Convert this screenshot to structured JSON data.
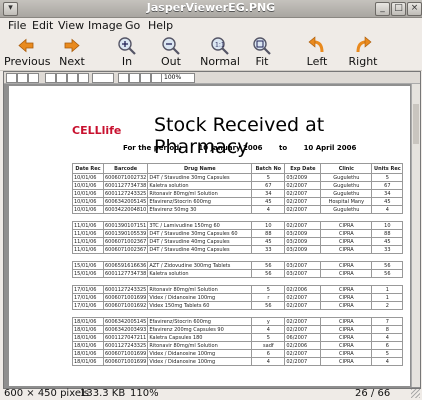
{
  "window": {
    "title": "JasperViewerEG.PNG"
  },
  "menu": [
    "File",
    "Edit",
    "View",
    "Image",
    "Go",
    "Help"
  ],
  "toolbar": [
    {
      "label": "Previous",
      "icon": "arrow-left-icon"
    },
    {
      "label": "Next",
      "icon": "arrow-right-icon"
    },
    {
      "label": "In",
      "icon": "zoom-in-icon"
    },
    {
      "label": "Out",
      "icon": "zoom-out-icon"
    },
    {
      "label": "Normal",
      "icon": "zoom-normal-icon"
    },
    {
      "label": "Fit",
      "icon": "zoom-fit-icon"
    },
    {
      "label": "Left",
      "icon": "rotate-left-icon"
    },
    {
      "label": "Right",
      "icon": "rotate-right-icon"
    }
  ],
  "viewer": {
    "zoom": "100%"
  },
  "report": {
    "logo": "CELLlife",
    "title": "Stock Received at Pharmacy",
    "period_label": "For the period:",
    "date_from": "10 January 2006",
    "to": "to",
    "date_to": "10 April 2006",
    "columns": [
      "Date Rec",
      "Barcode",
      "Drug Name",
      "Batch No",
      "Exp Date",
      "Clinic",
      "Units Rec"
    ],
    "groups": [
      [
        [
          "10/01/06",
          "6006071002732",
          "D4T / Stavudine 30mg Capsules",
          "5",
          "03/2009",
          "Gugulethu",
          "5"
        ],
        [
          "10/01/06",
          "6001127734738",
          "Kaletra solution",
          "67",
          "02/2007",
          "Gugulethu",
          "67"
        ],
        [
          "10/01/06",
          "6001127243325",
          "Ritonavir 80mg/ml Solution",
          "34",
          "02/2007",
          "Gugulethu",
          "34"
        ],
        [
          "10/01/06",
          "6006342005145",
          "Efavirenz/Stocrin 600mg",
          "45",
          "02/2007",
          "Hospital Many",
          "45"
        ],
        [
          "10/01/06",
          "6003422004810",
          "Efavirenz 50mg 30",
          "4",
          "02/2007",
          "Gugulethu",
          "4"
        ]
      ],
      [
        [
          "11/01/06",
          "6001390107151",
          "3TC / Lamivudine 150mg 60",
          "10",
          "02/2007",
          "CIPRA",
          "10"
        ],
        [
          "11/01/06",
          "6001390105539",
          "D4T / Stavudine 30mg Capsules 60",
          "88",
          "03/2009",
          "CIPRA",
          "88"
        ],
        [
          "11/01/06",
          "6006071002367",
          "D4T / Stavudine 40mg Capsules",
          "45",
          "03/2009",
          "CIPRA",
          "45"
        ],
        [
          "11/01/06",
          "6006071002367",
          "D4T / Stavudine 40mg Capsules",
          "33",
          "03/2009",
          "CIPRA",
          "33"
        ]
      ],
      [
        [
          "15/01/06",
          "6006591616636",
          "AZT / Zidovudine 300mg Tablets",
          "56",
          "03/2007",
          "CIPRA",
          "56"
        ],
        [
          "15/01/06",
          "6001127734738",
          "Kaletra solution",
          "56",
          "03/2007",
          "CIPRA",
          "56"
        ]
      ],
      [
        [
          "17/01/06",
          "6001127243325",
          "Ritonavir 80mg/ml Solution",
          "5",
          "02/2006",
          "CIPRA",
          "1"
        ],
        [
          "17/01/06",
          "6006071001699",
          "Videx / Didanosine 100mg",
          "r",
          "02/2007",
          "CIPRA",
          "1"
        ],
        [
          "17/01/06",
          "6006071001692",
          "Videx 150mg Tablets 60",
          "56",
          "02/2007",
          "CIPRA",
          "2"
        ]
      ],
      [
        [
          "18/01/06",
          "6006342005145",
          "Efavirenz/Stocrin 600mg",
          "y",
          "02/2007",
          "CIPRA",
          "7"
        ],
        [
          "18/01/06",
          "6006342003493",
          "Efavirenz 200mg Capsules 90",
          "4",
          "02/2007",
          "CIPRA",
          "8"
        ],
        [
          "18/01/06",
          "6001127047211",
          "Kaletra Capsules 180",
          "5",
          "06/2007",
          "CIPRA",
          "4"
        ],
        [
          "18/01/06",
          "6001127243325",
          "Ritonavir 80mg/ml Solution",
          "sadf",
          "02/2006",
          "CIPRA",
          "6"
        ],
        [
          "18/01/06",
          "6006071001699",
          "Videx / Didanosine 100mg",
          "6",
          "02/2007",
          "CIPRA",
          "5"
        ],
        [
          "18/01/06",
          "6006071001699",
          "Videx / Didanosine 100mg",
          "4",
          "02/2007",
          "CIPRA",
          "4"
        ]
      ]
    ]
  },
  "status": {
    "dimensions": "600 × 450 pixels",
    "size": "133.3 KB",
    "zoom": "110%",
    "position": "26 / 66"
  }
}
